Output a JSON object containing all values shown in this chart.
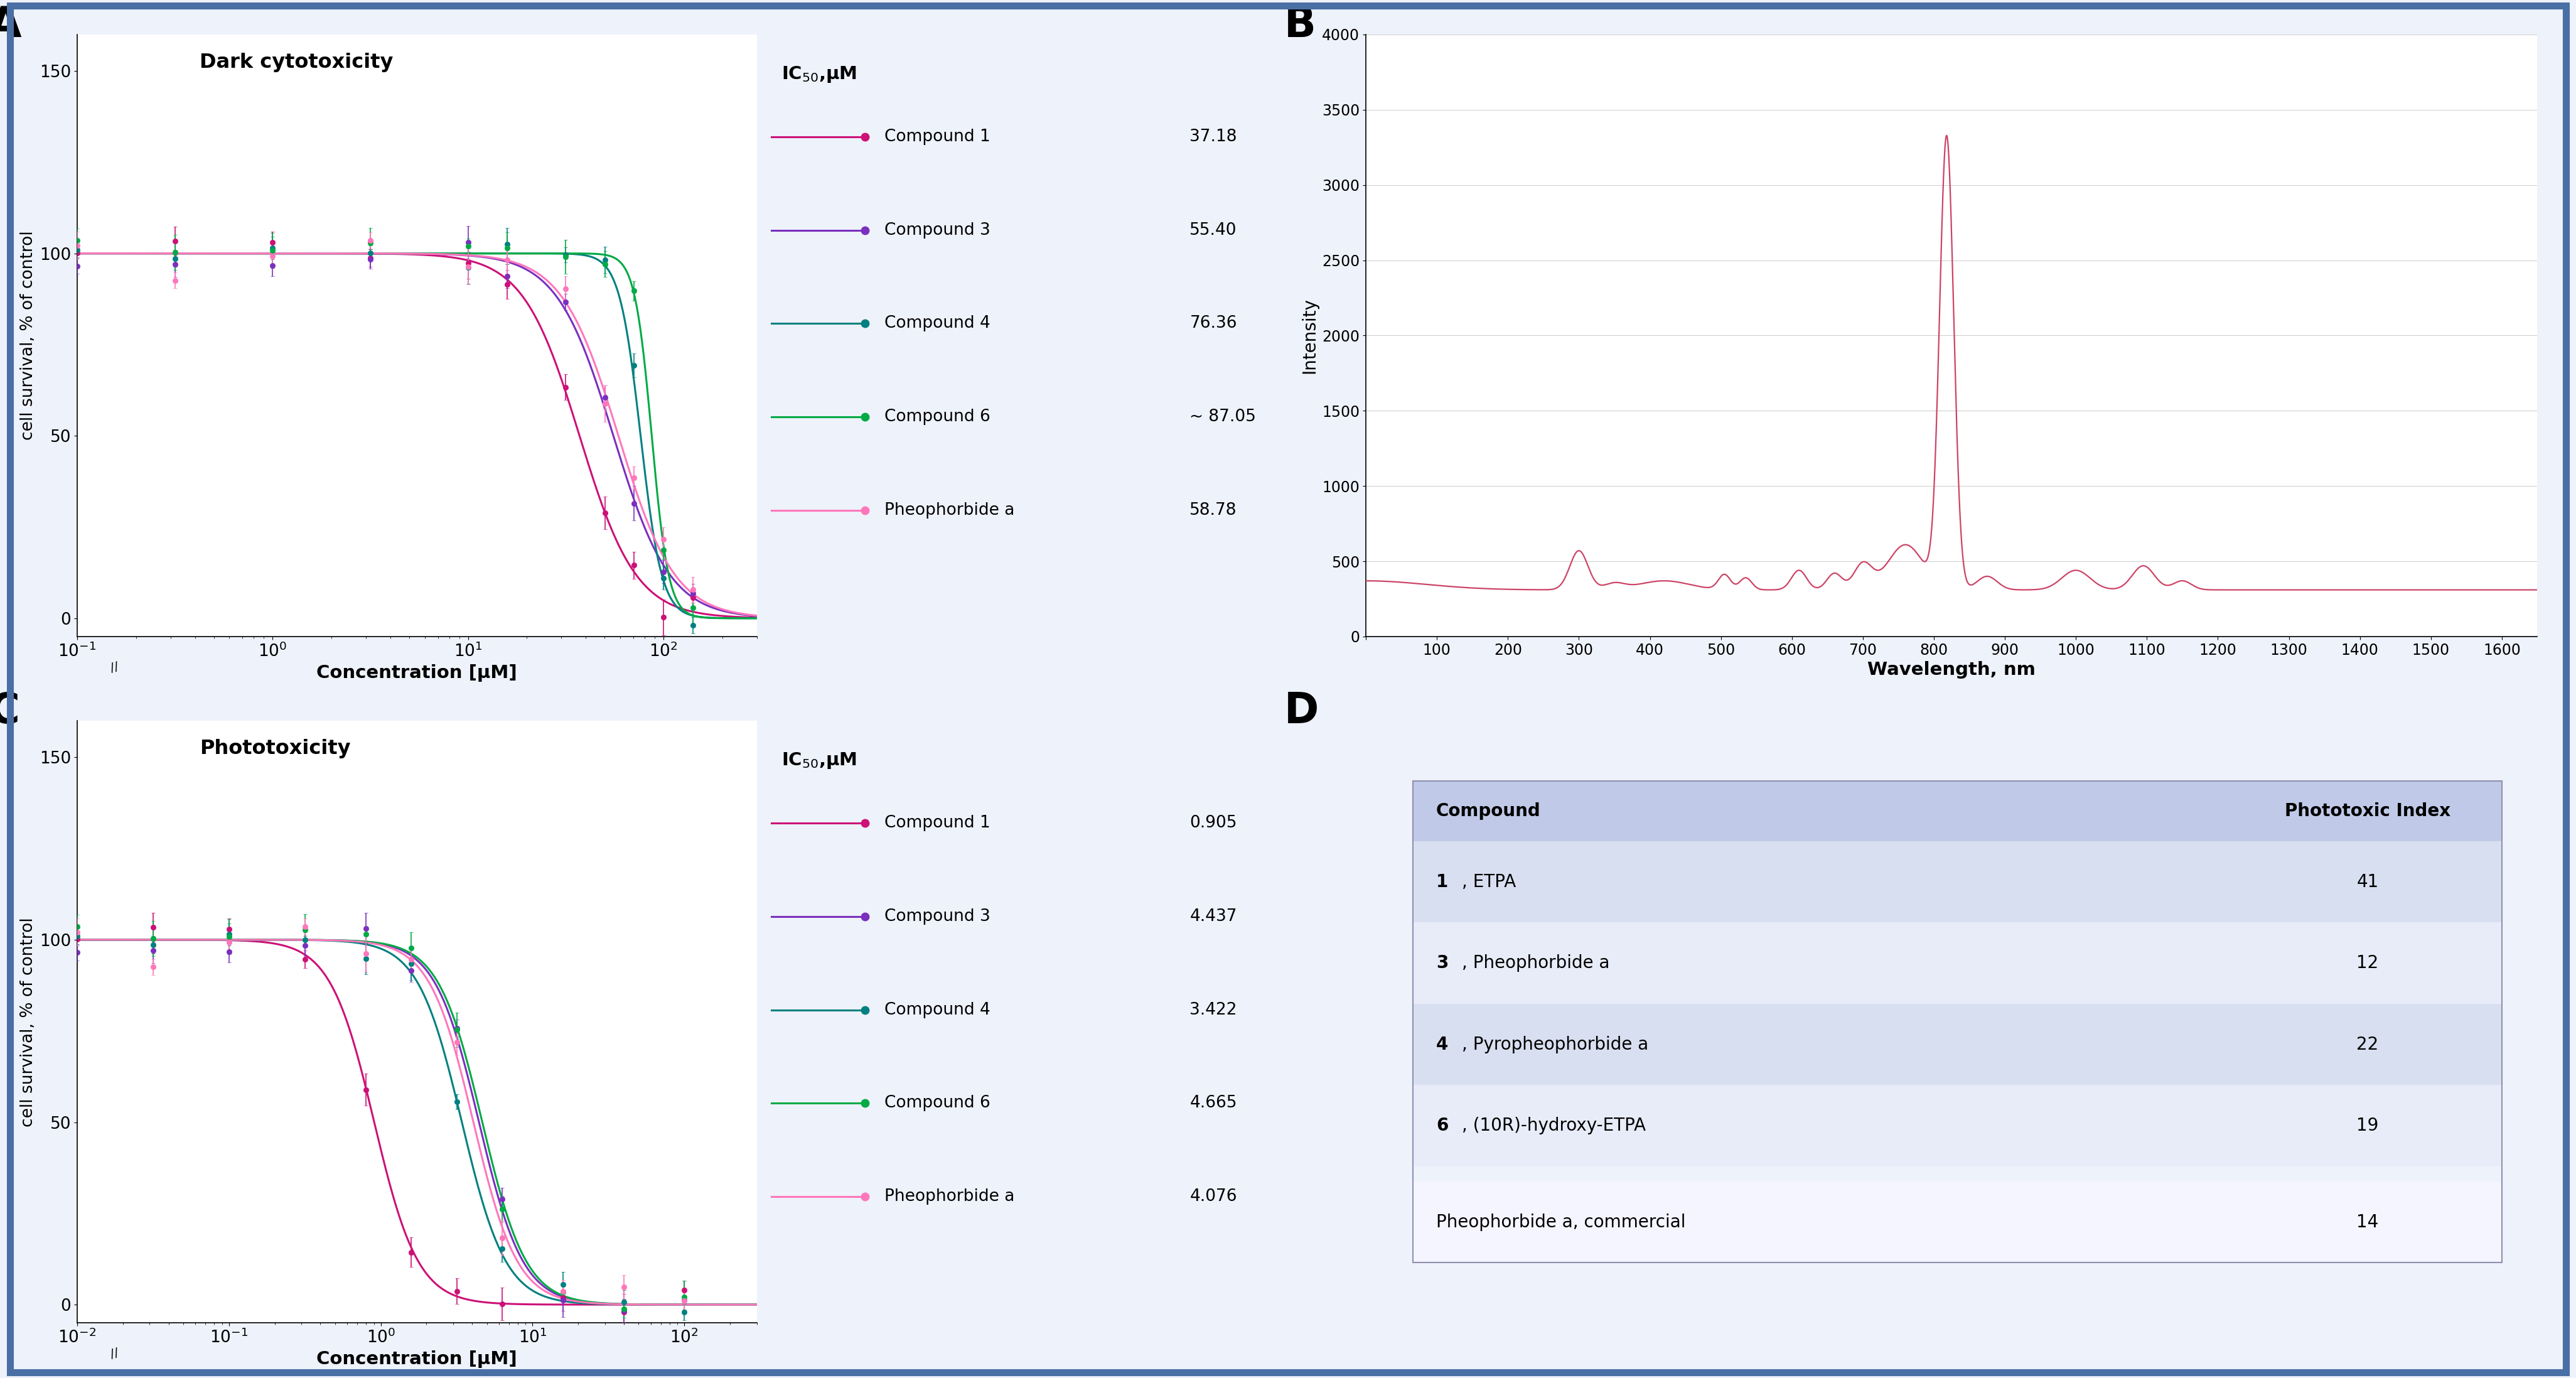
{
  "background_color": "#eef2fa",
  "border_color": "#4a6fa5",
  "panel_bg": "#ffffff",
  "panel_A": {
    "title": "Dark cytotoxicity",
    "xlabel": "Concentration [μM]",
    "ylabel": "cell survival, % of control",
    "ylim": [
      -5,
      160
    ],
    "yticks": [
      0,
      50,
      100,
      150
    ],
    "xmin": 0.1,
    "xmax": 300,
    "ic50_label": "IC$_{50}$,μM",
    "compounds": [
      {
        "name": "Compound 1",
        "ic50": 37.18,
        "color": "#cc1177",
        "ic50_str": "37.18",
        "hill": 3.0
      },
      {
        "name": "Compound 3",
        "ic50": 55.4,
        "color": "#7b2fbe",
        "ic50_str": "55.40",
        "hill": 3.0
      },
      {
        "name": "Compound 4",
        "ic50": 76.36,
        "color": "#008080",
        "ic50_str": "76.36",
        "hill": 8.0
      },
      {
        "name": "Compound 6",
        "ic50": 87.05,
        "color": "#00aa44",
        "ic50_str": "~ 87.05",
        "hill": 10.0
      },
      {
        "name": "Pheophorbide a",
        "ic50": 58.78,
        "color": "#ff77bb",
        "ic50_str": "58.78",
        "hill": 3.0
      }
    ],
    "data_points_log": [
      -1.0,
      -0.5,
      0.0,
      0.5,
      1.0,
      1.2,
      1.5,
      1.7,
      1.85,
      2.0,
      2.15
    ]
  },
  "panel_B": {
    "xlabel": "Wavelength, nm",
    "ylabel": "Intensity",
    "xlim": [
      0,
      1650
    ],
    "ylim": [
      0,
      4000
    ],
    "yticks": [
      0,
      500,
      1000,
      1500,
      2000,
      2500,
      3000,
      3500,
      4000
    ],
    "xticks": [
      0,
      100,
      200,
      300,
      400,
      500,
      600,
      700,
      800,
      900,
      1000,
      1100,
      1200,
      1300,
      1400,
      1500,
      1600
    ],
    "line_color": "#cc4466"
  },
  "panel_C": {
    "title": "Phototoxicity",
    "xlabel": "Concentration [μM]",
    "ylabel": "cell survival, % of control",
    "ylim": [
      -5,
      160
    ],
    "yticks": [
      0,
      50,
      100,
      150
    ],
    "xmin": 0.01,
    "xmax": 300,
    "ic50_label": "IC$_{50}$,μM",
    "compounds": [
      {
        "name": "Compound 1",
        "ic50": 0.905,
        "color": "#cc1177",
        "ic50_str": "0.905",
        "hill": 3.0
      },
      {
        "name": "Compound 3",
        "ic50": 4.437,
        "color": "#7b2fbe",
        "ic50_str": "4.437",
        "hill": 3.0
      },
      {
        "name": "Compound 4",
        "ic50": 3.422,
        "color": "#008080",
        "ic50_str": "3.422",
        "hill": 3.0
      },
      {
        "name": "Compound 6",
        "ic50": 4.665,
        "color": "#00aa44",
        "ic50_str": "4.665",
        "hill": 3.0
      },
      {
        "name": "Pheophorbide a",
        "ic50": 4.076,
        "color": "#ff77bb",
        "ic50_str": "4.076",
        "hill": 3.0
      }
    ],
    "data_points_log": [
      -2.0,
      -1.5,
      -1.0,
      -0.5,
      -0.1,
      0.2,
      0.5,
      0.8,
      1.2,
      1.6,
      2.0
    ]
  },
  "panel_D": {
    "header_col1": "Compound",
    "header_col2": "Phototoxic Index",
    "rows": [
      {
        "compound": "1, ETPA",
        "index": "41",
        "bold": true
      },
      {
        "compound": "3, Pheophorbide a",
        "index": "12",
        "bold": true
      },
      {
        "compound": "4, Pyropheophorbide a",
        "index": "22",
        "bold": true
      },
      {
        "compound": "6, (10R)-hydroxy-ETPA",
        "index": "19",
        "bold": true
      },
      {
        "compound": "Pheophorbide a, commercial",
        "index": "14",
        "bold": false
      }
    ],
    "row_colors": [
      "#d8dff0",
      "#e8ecf8",
      "#d8dff0",
      "#e8ecf8",
      "#f5f5ff"
    ],
    "header_color": "#c0cae8"
  }
}
